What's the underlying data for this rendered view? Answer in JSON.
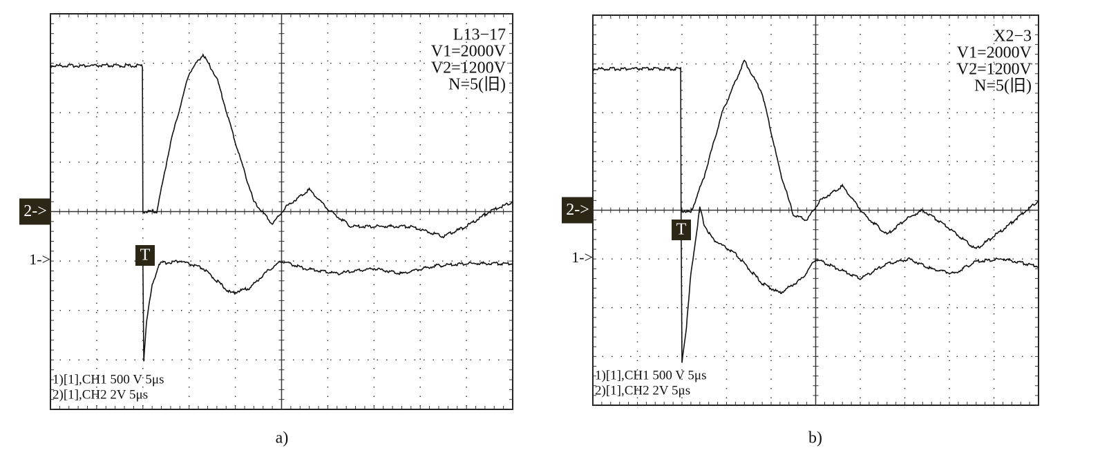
{
  "panels": [
    {
      "caption": "a)",
      "info": [
        "L13−17",
        "V1=2000V",
        "V2=1200V",
        "N=5(旧)"
      ],
      "ch2_marker": "2->",
      "ch1_marker": "1->",
      "trigger": "T",
      "settings": [
        "1)[1],CH1 500 V 5μs",
        "2)[1],CH2 2V 5μs"
      ]
    },
    {
      "caption": "b)",
      "info": [
        "X2−3",
        "V1=2000V",
        "V2=1200V",
        "N=5(旧)"
      ],
      "ch2_marker": "2->",
      "ch1_marker": "1->",
      "trigger": "T",
      "settings": [
        "1)[1],CH1 500 V 5μs",
        "2)[1],CH2 2V 5μs"
      ]
    }
  ]
}
